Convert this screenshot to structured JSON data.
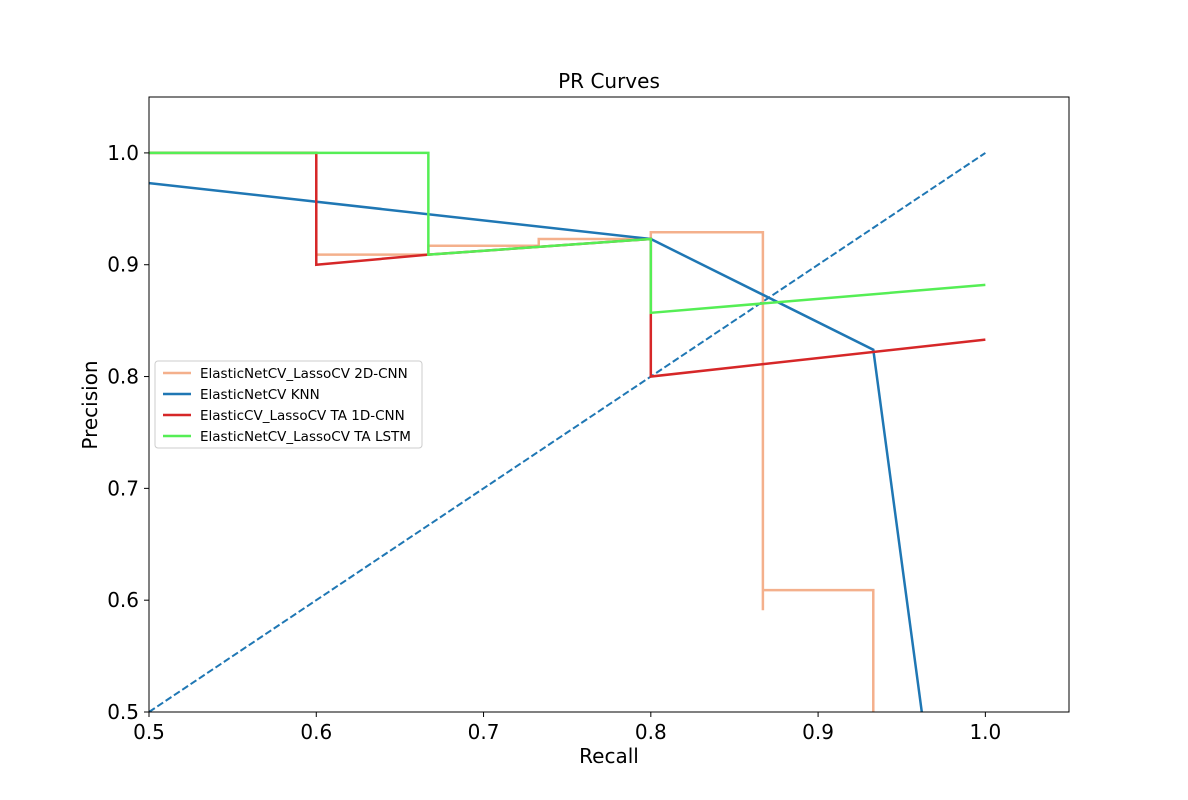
{
  "chart_data": {
    "type": "line",
    "title": "PR Curves",
    "xlabel": "Recall",
    "ylabel": "Precision",
    "xlim": [
      0.5,
      1.05
    ],
    "ylim": [
      0.5,
      1.05
    ],
    "xticks": [
      0.5,
      0.6,
      0.7,
      0.8,
      0.9,
      1.0
    ],
    "xtick_labels": [
      "0.5",
      "0.6",
      "0.7",
      "0.8",
      "0.9",
      "1.0"
    ],
    "yticks": [
      0.5,
      0.6,
      0.7,
      0.8,
      0.9,
      1.0
    ],
    "ytick_labels": [
      "0.5",
      "0.6",
      "0.7",
      "0.8",
      "0.9",
      "1.0"
    ],
    "grid": false,
    "legend_position": "center-left",
    "series": [
      {
        "name": "ElasticNetCV_LassoCV 2D-CNN",
        "color": "#f4b08c",
        "points": [
          [
            0.5,
            1.0
          ],
          [
            0.6,
            1.0
          ],
          [
            0.6,
            0.909
          ],
          [
            0.667,
            0.909
          ],
          [
            0.667,
            0.917
          ],
          [
            0.733,
            0.917
          ],
          [
            0.733,
            0.923
          ],
          [
            0.8,
            0.923
          ],
          [
            0.8,
            0.929
          ],
          [
            0.867,
            0.929
          ],
          [
            0.867,
            0.591
          ],
          [
            0.867,
            0.609
          ],
          [
            0.933,
            0.609
          ],
          [
            0.933,
            0.5
          ]
        ]
      },
      {
        "name": "ElasticNetCV KNN",
        "color": "#1f77b4",
        "points": [
          [
            0.5,
            0.973
          ],
          [
            0.8,
            0.923
          ],
          [
            0.933,
            0.824
          ],
          [
            0.962,
            0.5
          ]
        ]
      },
      {
        "name": "ElasticCV_LassoCV TA 1D-CNN",
        "color": "#d62728",
        "points": [
          [
            0.5,
            1.0
          ],
          [
            0.6,
            1.0
          ],
          [
            0.6,
            0.9
          ],
          [
            0.667,
            0.909
          ],
          [
            0.8,
            0.923
          ],
          [
            0.8,
            0.8
          ],
          [
            1.0,
            0.833
          ]
        ]
      },
      {
        "name": "ElasticNetCV_LassoCV TA LSTM",
        "color": "#55ee55",
        "points": [
          [
            0.5,
            1.0
          ],
          [
            0.667,
            1.0
          ],
          [
            0.667,
            0.909
          ],
          [
            0.8,
            0.923
          ],
          [
            0.8,
            0.857
          ],
          [
            1.0,
            0.882
          ]
        ]
      }
    ],
    "reference_line": {
      "color": "#1f77b4",
      "style": "dashed",
      "points": [
        [
          0.5,
          0.5
        ],
        [
          1.0,
          1.0
        ]
      ]
    }
  }
}
